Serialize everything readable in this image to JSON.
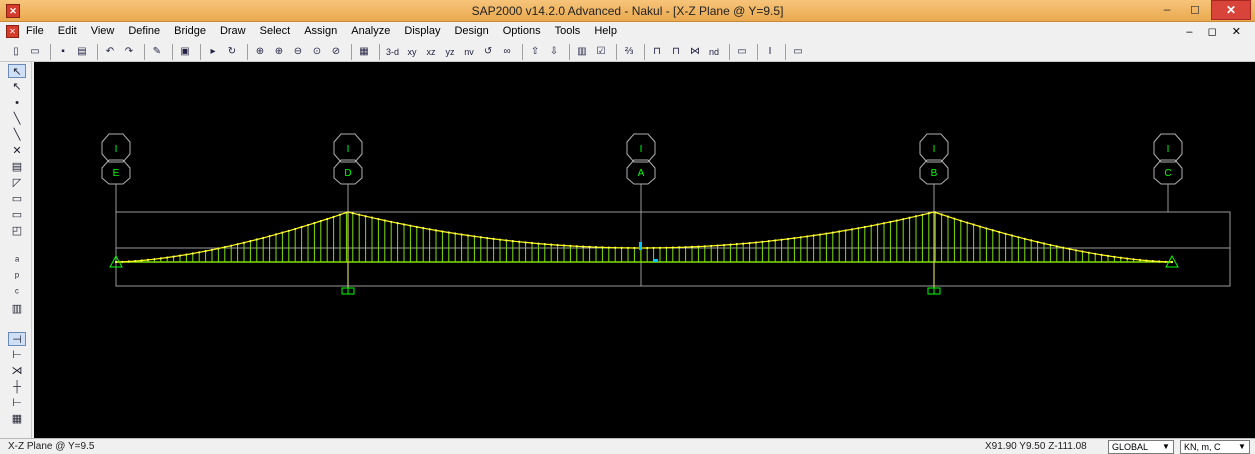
{
  "window": {
    "title": "SAP2000 v14.2.0 Advanced  - Nakul - [X-Z Plane @ Y=9.5]",
    "app_icon": "sap-logo-icon",
    "controls": [
      "–",
      "◻",
      "✕"
    ]
  },
  "menubar": {
    "items": [
      "File",
      "Edit",
      "View",
      "Define",
      "Bridge",
      "Draw",
      "Select",
      "Assign",
      "Analyze",
      "Display",
      "Design",
      "Options",
      "Tools",
      "Help"
    ],
    "mdi_controls": "– ◻ ✕"
  },
  "toolbar": {
    "view_3d": "3-d",
    "view_xy": "xy",
    "view_xz": "xz",
    "view_yz": "yz",
    "view_nv": "nv",
    "view_nd": "nd"
  },
  "grid_labels": {
    "top_row": [
      "I",
      "I",
      "I",
      "I",
      "I"
    ],
    "bottom_row": [
      "E",
      "D",
      "A",
      "B",
      "C"
    ]
  },
  "status": {
    "view_label": "X-Z Plane @ Y=9.5",
    "coordinates": "X91.90  Y9.50  Z-111.08",
    "coord_system": "GLOBAL",
    "units": "KN, m, C"
  },
  "colors": {
    "canvas_bg": "#000000",
    "cable": "#ffff00",
    "hangers": "#7fe000",
    "grid_lines": "#9a9a9a",
    "supports": "#00ff00"
  }
}
